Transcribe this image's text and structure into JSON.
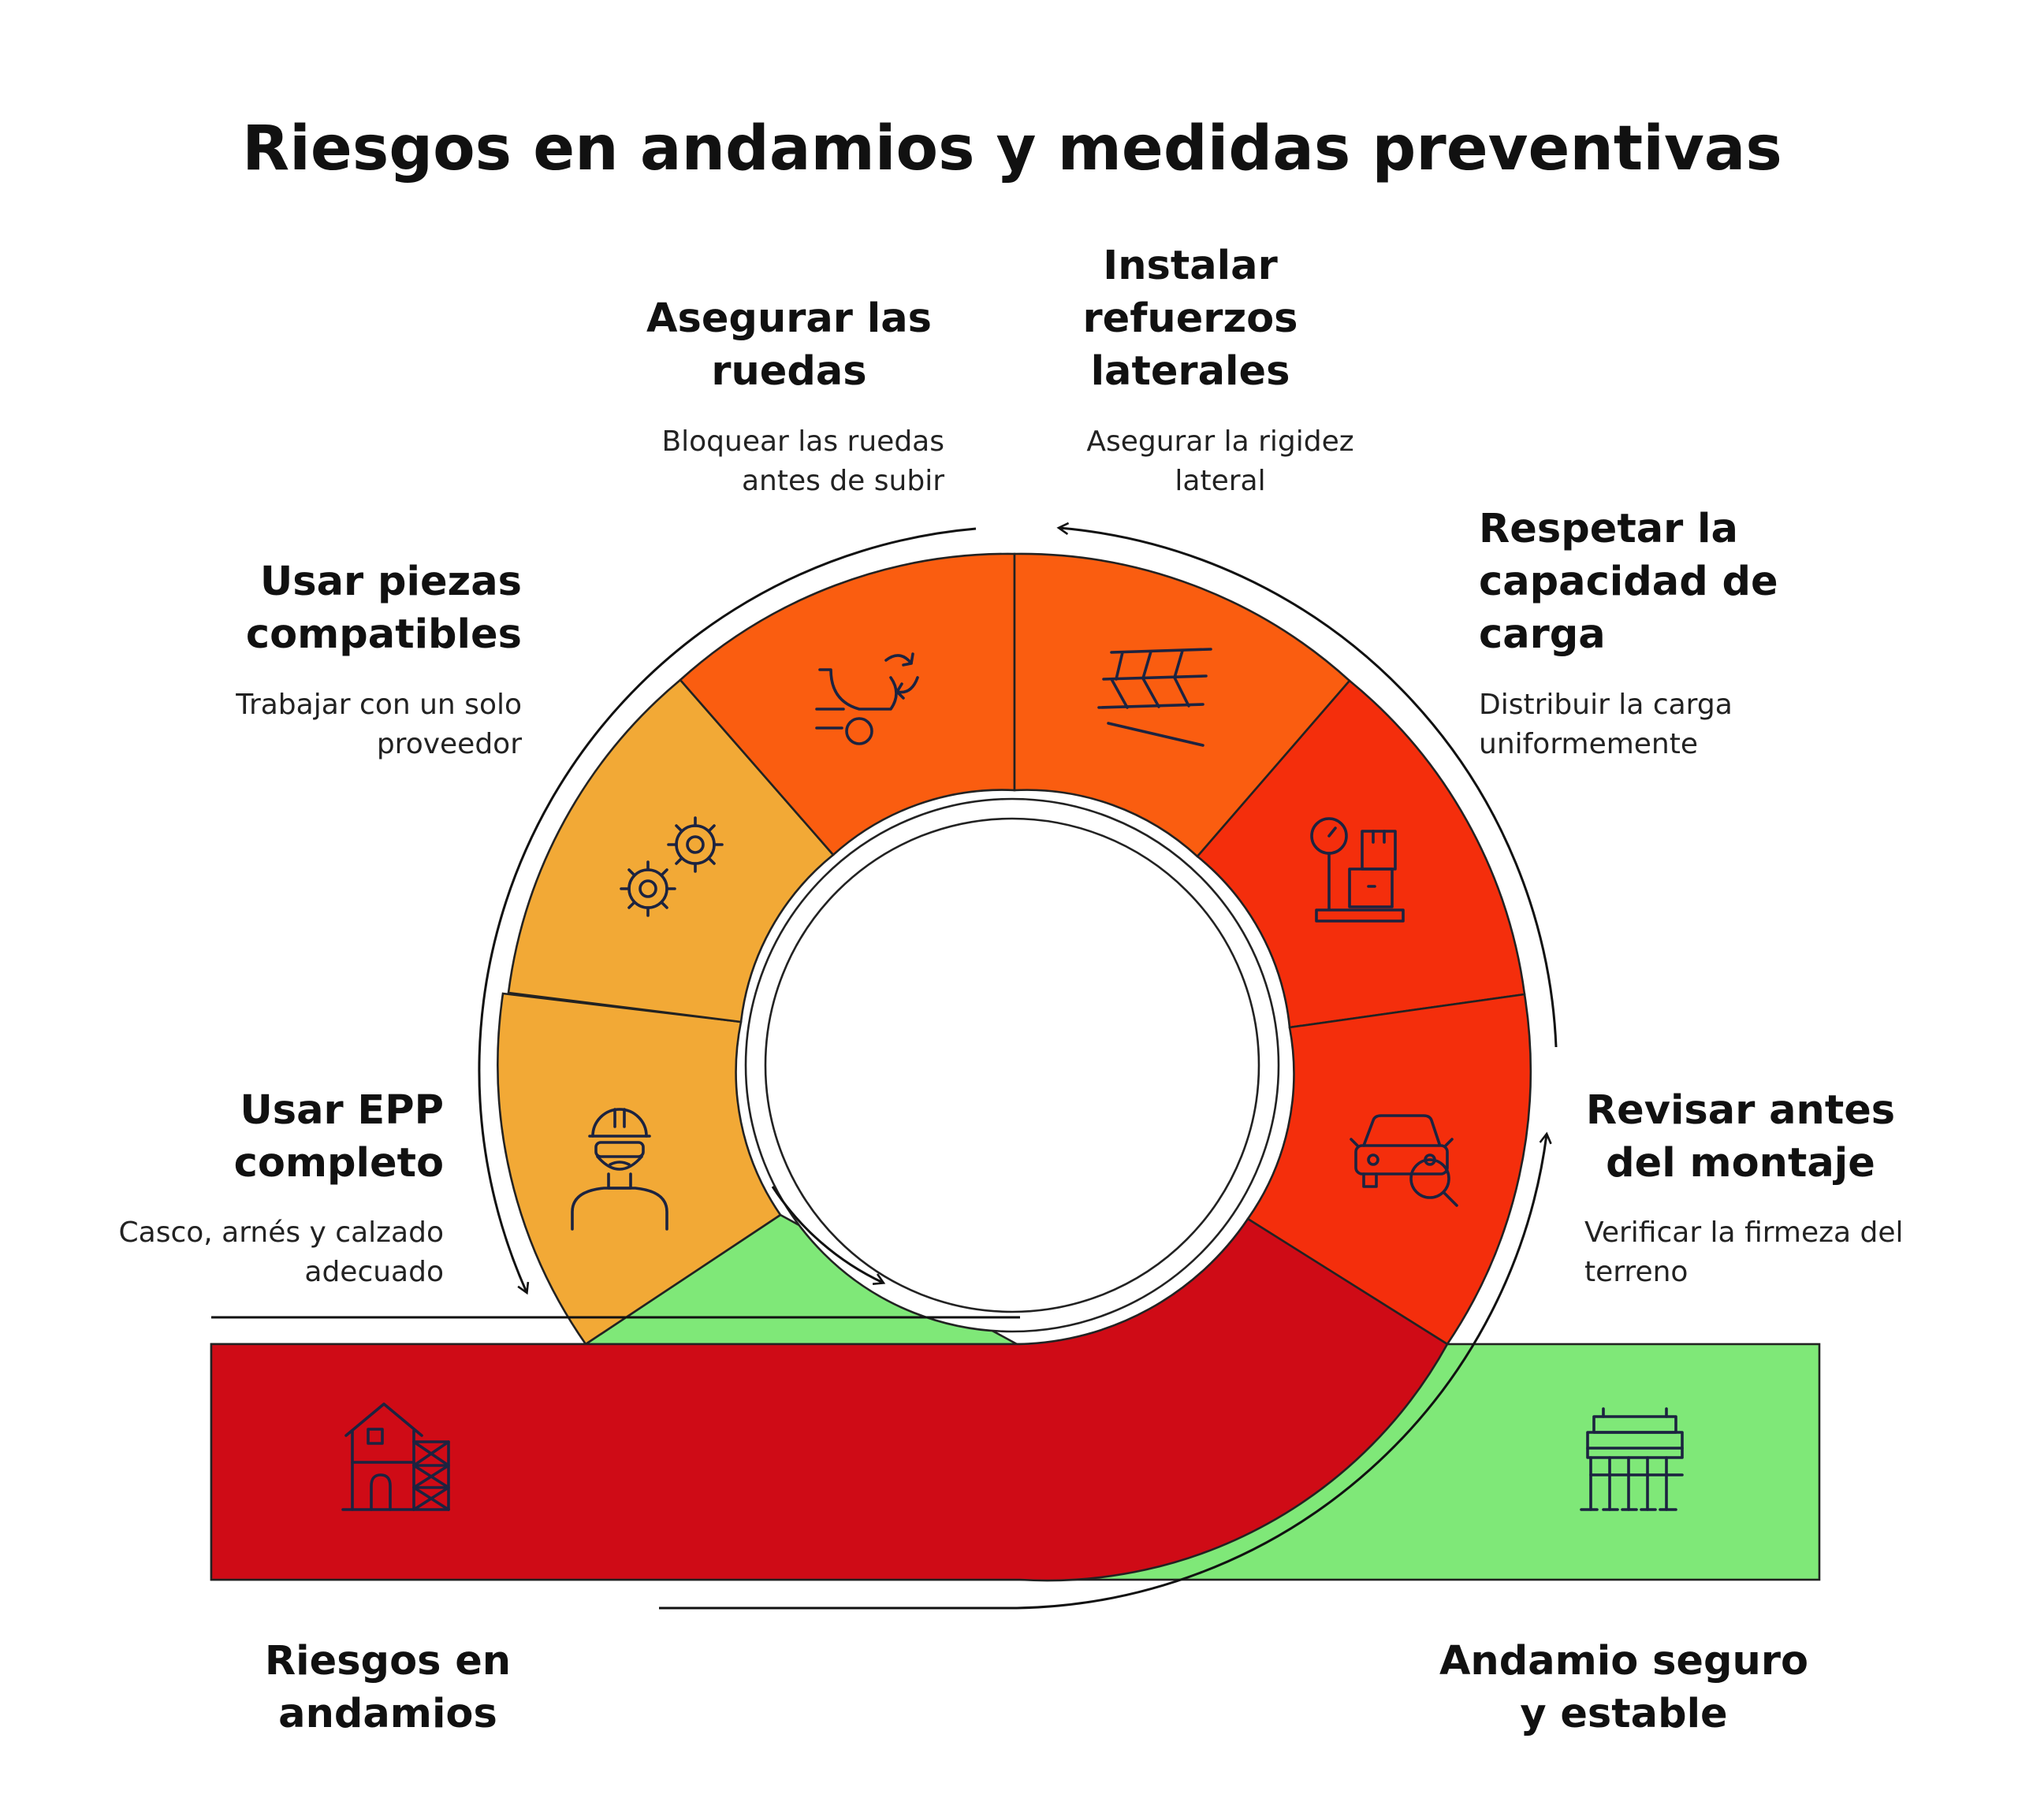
{
  "title": "Riesgos en andamios y medidas preventivas",
  "colors": {
    "amber": "#f2a936",
    "orange": "#fa5d10",
    "red_orange": "#f42e0c",
    "dark_red": "#cf0b16",
    "green": "#7fe878",
    "outline": "#222222"
  },
  "segments": [
    {
      "id": "usar-epp",
      "title_lines": [
        "Usar EPP",
        "completo"
      ],
      "desc_lines": [
        "Casco, arnés y calzado",
        "adecuado"
      ],
      "icon": "worker-helmet-icon",
      "color": "amber"
    },
    {
      "id": "usar-piezas",
      "title_lines": [
        "Usar piezas",
        "compatibles"
      ],
      "desc_lines": [
        "Trabajar con un solo",
        "proveedor"
      ],
      "icon": "gears-icon",
      "color": "amber"
    },
    {
      "id": "asegurar-ruedas",
      "title_lines": [
        "Asegurar las",
        "ruedas"
      ],
      "desc_lines": [
        "Bloquear las ruedas",
        "antes de subir"
      ],
      "icon": "wheel-lock-icon",
      "color": "orange"
    },
    {
      "id": "instalar-refuerzos",
      "title_lines": [
        "Instalar",
        "refuerzos",
        "laterales"
      ],
      "desc_lines": [
        "Asegurar la rigidez",
        "lateral"
      ],
      "icon": "bracing-icon",
      "color": "orange"
    },
    {
      "id": "respetar-capacidad",
      "title_lines": [
        "Respetar la",
        "capacidad de",
        "carga"
      ],
      "desc_lines": [
        "Distribuir la carga",
        "uniformemente"
      ],
      "icon": "weight-scale-icon",
      "color": "red_orange"
    },
    {
      "id": "revisar-montaje",
      "title_lines": [
        "Revisar antes",
        "del montaje"
      ],
      "desc_lines": [
        "Verificar la firmeza del",
        "terreno"
      ],
      "icon": "inspection-icon",
      "color": "red_orange"
    }
  ],
  "start": {
    "title_lines": [
      "Riesgos en",
      "andamios"
    ],
    "icon": "house-scaffold-icon",
    "color": "dark_red"
  },
  "end": {
    "title_lines": [
      "Andamio seguro",
      "y estable"
    ],
    "icon": "scaffold-icon",
    "color": "green"
  }
}
